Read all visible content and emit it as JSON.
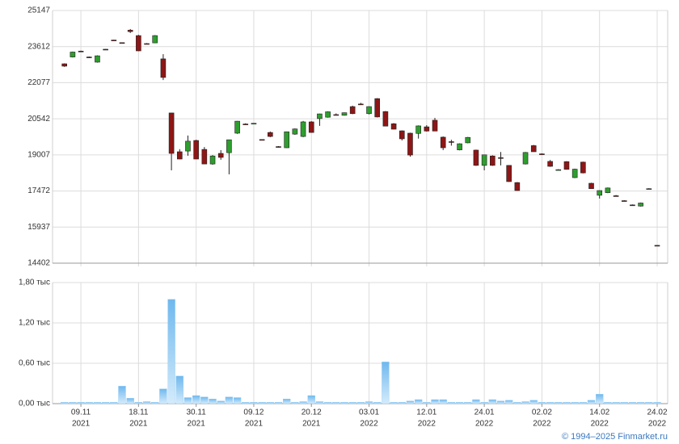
{
  "chart_data": [
    {
      "type": "candlestick",
      "ylim": [
        14402,
        25147
      ],
      "yticks": [
        14402,
        15937,
        17472,
        19007,
        20542,
        22077,
        23612,
        25147
      ],
      "grid": true,
      "up_color": "#2e9e2e",
      "down_color": "#8e1616",
      "open": [
        22880,
        23170,
        23420,
        23170,
        22950,
        23500,
        23890,
        23780,
        24310,
        24080,
        23740,
        23770,
        23090,
        20790,
        19140,
        19170,
        19620,
        19240,
        18620,
        19070,
        19100,
        19930,
        20320,
        20340,
        19660,
        19960,
        19360,
        19310,
        19890,
        19790,
        20410,
        20550,
        20610,
        20720,
        20690,
        21060,
        21170,
        20760,
        21400,
        20850,
        20330,
        20030,
        19930,
        19920,
        20200,
        20480,
        19760,
        19570,
        19220,
        19520,
        19210,
        18560,
        18960,
        18890,
        18560,
        17830,
        18620,
        19400,
        19050,
        18730,
        18380,
        18720,
        18040,
        18700,
        17800,
        17290,
        17400,
        17270,
        17060,
        16880,
        16830,
        17570,
        15160
      ],
      "high": [
        22900,
        23400,
        23440,
        23190,
        23240,
        23510,
        23900,
        23790,
        24360,
        24110,
        23760,
        24100,
        23290,
        20790,
        19250,
        19830,
        19650,
        19340,
        19000,
        19210,
        19650,
        20450,
        20350,
        20360,
        19670,
        20000,
        19380,
        20000,
        20130,
        20450,
        20440,
        20760,
        20860,
        20770,
        20810,
        21100,
        21220,
        21070,
        21420,
        20870,
        20360,
        20050,
        19950,
        20260,
        20270,
        20580,
        19790,
        19650,
        19500,
        19770,
        19230,
        19010,
        18990,
        19130,
        18570,
        17850,
        19130,
        19430,
        19070,
        18790,
        18400,
        18740,
        18420,
        18720,
        17820,
        17500,
        17620,
        17300,
        17080,
        16900,
        16980,
        17590,
        15170
      ],
      "low": [
        22750,
        23150,
        23390,
        23130,
        22930,
        23480,
        23860,
        23760,
        24190,
        23420,
        23720,
        23760,
        22190,
        18350,
        18820,
        18970,
        18830,
        18620,
        18590,
        18800,
        18180,
        19900,
        20290,
        20330,
        19640,
        19760,
        19320,
        19300,
        19860,
        19760,
        19950,
        20240,
        20590,
        20700,
        20680,
        20740,
        21130,
        20730,
        20600,
        20220,
        20090,
        19620,
        18930,
        19700,
        20000,
        20020,
        19210,
        19400,
        19200,
        19500,
        18540,
        18350,
        18540,
        18560,
        17860,
        17480,
        18600,
        19140,
        19030,
        18500,
        18370,
        18380,
        18020,
        18220,
        17560,
        17150,
        17380,
        17250,
        17040,
        16860,
        16810,
        17560,
        15140
      ],
      "close": [
        22780,
        23380,
        23400,
        23150,
        23220,
        23490,
        23870,
        23770,
        24250,
        23430,
        23730,
        24080,
        22300,
        19070,
        18830,
        19590,
        18830,
        18620,
        18960,
        18900,
        19650,
        20440,
        20310,
        20350,
        19650,
        19790,
        19340,
        19990,
        20110,
        20410,
        19960,
        20750,
        20840,
        20710,
        20800,
        20760,
        21160,
        21060,
        20620,
        20230,
        20100,
        19690,
        19000,
        20240,
        20020,
        20020,
        19310,
        19550,
        19480,
        19750,
        18560,
        19010,
        18560,
        18880,
        17870,
        17490,
        19110,
        19140,
        19040,
        18520,
        18380,
        18390,
        18400,
        18240,
        17570,
        17490,
        17600,
        17260,
        17050,
        16870,
        16960,
        17570,
        15150
      ]
    },
    {
      "type": "bar",
      "color": "#8cc8f2",
      "grid": true,
      "ylim": [
        0,
        1.8
      ],
      "yticks": [
        {
          "value": 0,
          "label": "0,00 тыс"
        },
        {
          "value": 0.6,
          "label": "0,60 тыс"
        },
        {
          "value": 1.2,
          "label": "1,20 тыс"
        },
        {
          "value": 1.8,
          "label": "1,80 тыс"
        }
      ],
      "categories": [
        null,
        null,
        [
          "09.11",
          "2021"
        ],
        null,
        null,
        null,
        null,
        null,
        null,
        [
          "18.11",
          "2021"
        ],
        null,
        null,
        null,
        null,
        null,
        null,
        [
          "30.11",
          "2021"
        ],
        null,
        null,
        null,
        null,
        null,
        null,
        [
          "09.12",
          "2021"
        ],
        null,
        null,
        null,
        null,
        null,
        null,
        [
          "20.12",
          "2021"
        ],
        null,
        null,
        null,
        null,
        null,
        null,
        [
          "03.01",
          "2022"
        ],
        null,
        null,
        null,
        null,
        null,
        null,
        [
          "12.01",
          "2022"
        ],
        null,
        null,
        null,
        null,
        null,
        null,
        [
          "24.01",
          "2022"
        ],
        null,
        null,
        null,
        null,
        null,
        null,
        [
          "02.02",
          "2022"
        ],
        null,
        null,
        null,
        null,
        null,
        null,
        [
          "14.02",
          "2022"
        ],
        null,
        null,
        null,
        null,
        null,
        null,
        [
          "24.02",
          "2022"
        ]
      ],
      "values": [
        0.02,
        0.02,
        0.02,
        0.02,
        0.02,
        0.02,
        0.02,
        0.26,
        0.08,
        0.02,
        0.03,
        0.02,
        0.22,
        1.55,
        0.41,
        0.09,
        0.12,
        0.1,
        0.07,
        0.04,
        0.1,
        0.09,
        0.02,
        0.02,
        0.02,
        0.02,
        0.02,
        0.07,
        0.02,
        0.03,
        0.12,
        0.03,
        0.02,
        0.02,
        0.02,
        0.02,
        0.02,
        0.03,
        0.02,
        0.62,
        0.02,
        0.02,
        0.04,
        0.06,
        0.02,
        0.06,
        0.06,
        0.02,
        0.02,
        0.02,
        0.06,
        0.02,
        0.06,
        0.04,
        0.05,
        0.02,
        0.03,
        0.05,
        0.02,
        0.02,
        0.02,
        0.02,
        0.02,
        0.02,
        0.05,
        0.14,
        0.02,
        0.02,
        0.02,
        0.02,
        0.02,
        0.02,
        0.02
      ]
    }
  ],
  "copyright": "© 1994–2025 Finmarket.ru"
}
